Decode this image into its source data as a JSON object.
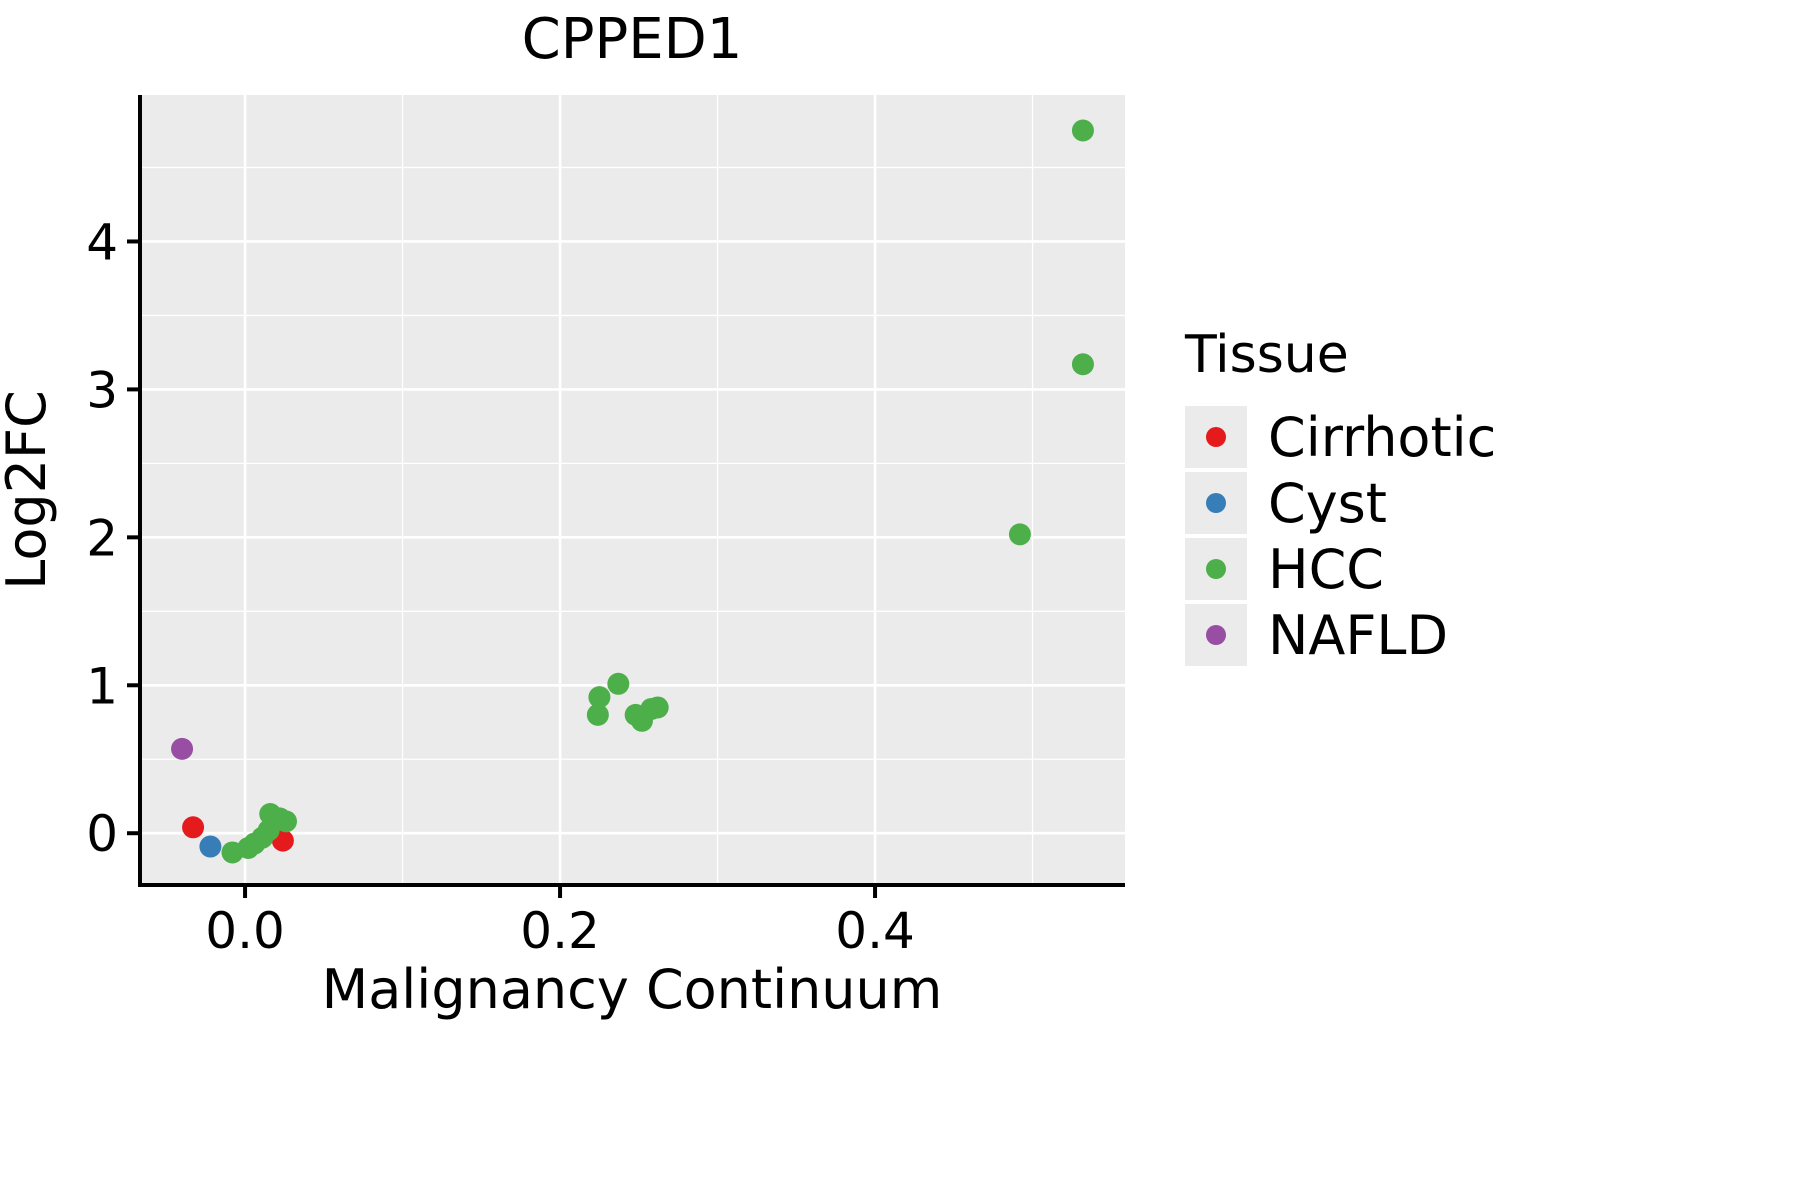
{
  "title": "CPPED1",
  "legend": {
    "title": "Tissue",
    "items": [
      {
        "label": "Cirrhotic",
        "color": "#E41A1C"
      },
      {
        "label": "Cyst",
        "color": "#377EB8"
      },
      {
        "label": "HCC",
        "color": "#4DAF4A"
      },
      {
        "label": "NAFLD",
        "color": "#984EA3"
      }
    ]
  },
  "chart_data": {
    "type": "scatter",
    "title": "CPPED1",
    "xlabel": "Malignancy Continuum",
    "ylabel": "Log2FC",
    "xlim": [
      -0.0667,
      0.5587
    ],
    "ylim": [
      -0.35,
      4.99
    ],
    "x_ticks": [
      0.0,
      0.2,
      0.4
    ],
    "x_tick_labels": [
      "0.0",
      "0.2",
      "0.4"
    ],
    "y_ticks": [
      0,
      1,
      2,
      3,
      4
    ],
    "y_tick_labels": [
      "0",
      "1",
      "2",
      "3",
      "4"
    ],
    "x_minor_ticks": [
      0.1,
      0.3,
      0.5
    ],
    "y_minor_ticks": [
      0.5,
      1.5,
      2.5,
      3.5,
      4.5
    ],
    "panel_bg": "#EBEBEB",
    "grid_color": "#FFFFFF",
    "legend_position": "right",
    "grid": true,
    "series": [
      {
        "name": "Cirrhotic",
        "color": "#E41A1C",
        "points": [
          [
            -0.033,
            0.04
          ],
          [
            0.024,
            -0.05
          ]
        ]
      },
      {
        "name": "Cyst",
        "color": "#377EB8",
        "points": [
          [
            -0.022,
            -0.09
          ]
        ]
      },
      {
        "name": "HCC",
        "color": "#4DAF4A",
        "points": [
          [
            -0.008,
            -0.13
          ],
          [
            0.002,
            -0.1
          ],
          [
            0.006,
            -0.07
          ],
          [
            0.011,
            -0.03
          ],
          [
            0.015,
            0.02
          ],
          [
            0.016,
            0.13
          ],
          [
            0.022,
            0.1
          ],
          [
            0.026,
            0.08
          ],
          [
            0.224,
            0.8
          ],
          [
            0.225,
            0.92
          ],
          [
            0.237,
            1.01
          ],
          [
            0.248,
            0.8
          ],
          [
            0.252,
            0.76
          ],
          [
            0.258,
            0.84
          ],
          [
            0.262,
            0.85
          ],
          [
            0.492,
            2.02
          ],
          [
            0.532,
            3.17
          ],
          [
            0.532,
            4.75
          ]
        ]
      },
      {
        "name": "NAFLD",
        "color": "#984EA3",
        "points": [
          [
            -0.04,
            0.57
          ]
        ]
      }
    ]
  }
}
